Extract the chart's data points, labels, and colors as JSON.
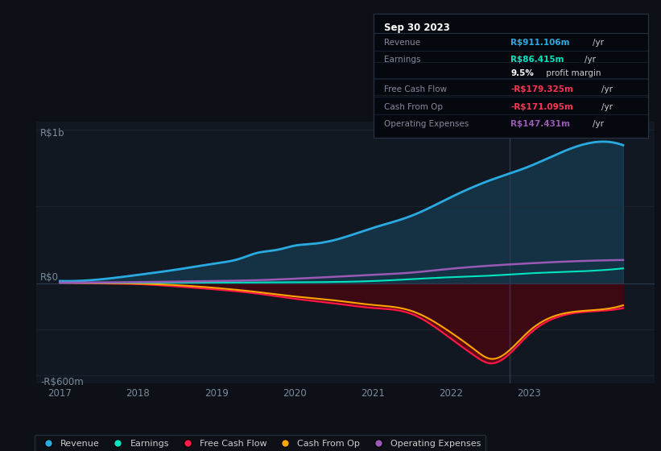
{
  "background_color": "#0d1117",
  "plot_bg_color": "#111822",
  "ylabel_top": "R$1b",
  "ylabel_bottom": "-R$600m",
  "ylabel_zero": "R$0",
  "colors": {
    "revenue": "#29abe2",
    "earnings": "#00e5c0",
    "fcf": "#ff1a4a",
    "cashfromop": "#ffa500",
    "opex": "#9b59b6",
    "axis_label": "#7a8a9a"
  },
  "legend": [
    {
      "label": "Revenue",
      "color": "#29abe2"
    },
    {
      "label": "Earnings",
      "color": "#00e5c0"
    },
    {
      "label": "Free Cash Flow",
      "color": "#ff1a4a"
    },
    {
      "label": "Cash From Op",
      "color": "#ffa500"
    },
    {
      "label": "Operating Expenses",
      "color": "#9b59b6"
    }
  ],
  "tooltip": {
    "date": "Sep 30 2023",
    "rows": [
      {
        "label": "Revenue",
        "value": "R$911.106m",
        "unit": "/yr",
        "value_color": "#29abe2"
      },
      {
        "label": "Earnings",
        "value": "R$86.415m",
        "unit": "/yr",
        "value_color": "#00e5c0"
      },
      {
        "label": "",
        "value": "9.5%",
        "unit": " profit margin",
        "value_color": "#ffffff"
      },
      {
        "label": "Free Cash Flow",
        "value": "-R$179.325m",
        "unit": "/yr",
        "value_color": "#ff3355"
      },
      {
        "label": "Cash From Op",
        "value": "-R$171.095m",
        "unit": "/yr",
        "value_color": "#ff3355"
      },
      {
        "label": "Operating Expenses",
        "value": "R$147.431m",
        "unit": "/yr",
        "value_color": "#9b59b6"
      }
    ]
  },
  "revenue_x": [
    2017.0,
    2017.5,
    2018.0,
    2018.5,
    2019.0,
    2019.3,
    2019.5,
    2019.8,
    2020.0,
    2020.2,
    2020.5,
    2021.0,
    2021.5,
    2022.0,
    2022.5,
    2023.0,
    2023.5,
    2024.0
  ],
  "revenue_y": [
    15,
    25,
    55,
    90,
    130,
    160,
    195,
    220,
    245,
    255,
    280,
    360,
    440,
    560,
    670,
    760,
    870,
    920
  ],
  "earnings_x": [
    2017.0,
    2018.0,
    2019.0,
    2020.0,
    2021.0,
    2022.0,
    2022.5,
    2023.0,
    2023.5,
    2024.0
  ],
  "earnings_y": [
    3,
    4,
    5,
    7,
    15,
    40,
    50,
    65,
    75,
    88
  ],
  "fcf_x": [
    2017.0,
    2017.5,
    2018.0,
    2018.5,
    2019.0,
    2019.5,
    2020.0,
    2020.5,
    2021.0,
    2021.5,
    2022.0,
    2022.3,
    2022.5,
    2023.0,
    2023.5,
    2024.0
  ],
  "fcf_y": [
    3,
    0,
    -5,
    -20,
    -40,
    -65,
    -100,
    -130,
    -160,
    -200,
    -360,
    -470,
    -520,
    -330,
    -200,
    -175
  ],
  "cashfromop_x": [
    2017.0,
    2017.5,
    2018.0,
    2018.5,
    2019.0,
    2019.5,
    2020.0,
    2020.5,
    2021.0,
    2021.5,
    2022.0,
    2022.3,
    2022.5,
    2023.0,
    2023.5,
    2024.0
  ],
  "cashfromop_y": [
    5,
    2,
    -2,
    -12,
    -30,
    -55,
    -85,
    -110,
    -140,
    -180,
    -320,
    -430,
    -490,
    -310,
    -190,
    -165
  ],
  "opex_x": [
    2017.0,
    2018.0,
    2019.0,
    2019.5,
    2020.0,
    2021.0,
    2021.5,
    2022.0,
    2022.5,
    2023.0,
    2023.5,
    2024.0
  ],
  "opex_y": [
    5,
    8,
    15,
    20,
    30,
    55,
    70,
    95,
    115,
    130,
    142,
    150
  ],
  "xlim": [
    2016.7,
    2024.6
  ],
  "ylim": [
    -650,
    1050
  ],
  "xticks": [
    2017,
    2018,
    2019,
    2020,
    2021,
    2022,
    2023
  ],
  "vline_x": 2022.75
}
